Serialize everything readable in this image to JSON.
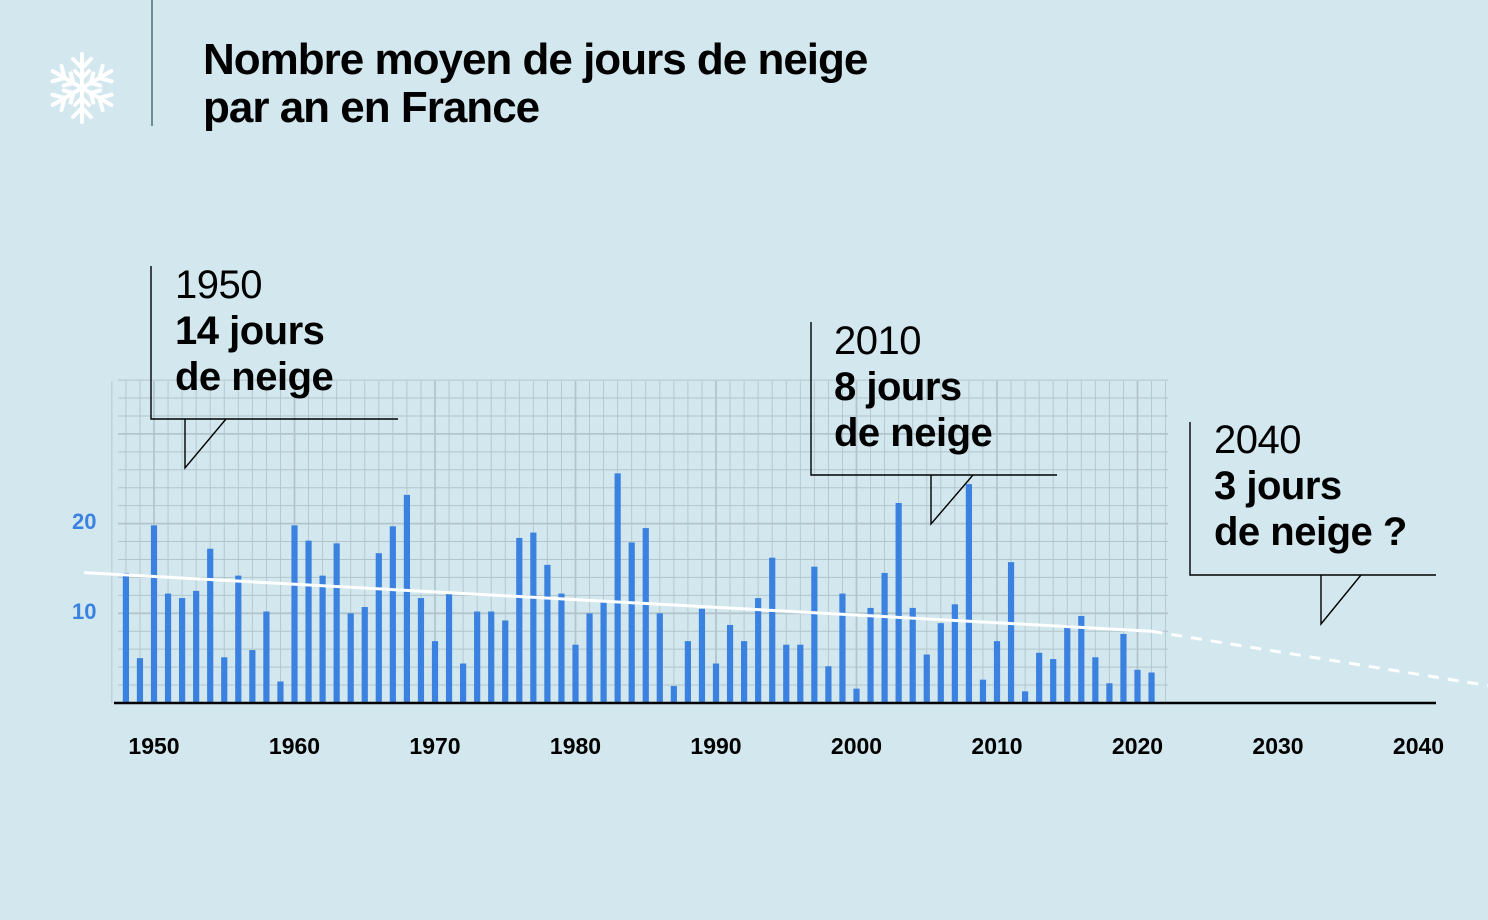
{
  "title": {
    "line1": "Nombre moyen de jours de neige",
    "line2": "par an en France"
  },
  "icon": "snowflake-icon",
  "colors": {
    "background": "#d3e7ee",
    "bar": "#3b82e0",
    "trend": "#ffffff",
    "grid": "#b3c5cc",
    "axis": "#000000",
    "y_tick_labels": "#3b82e0"
  },
  "callouts": [
    {
      "year": "1950",
      "line1": "14 jours",
      "line2": "de neige"
    },
    {
      "year": "2010",
      "line1": "8 jours",
      "line2": "de neige"
    },
    {
      "year": "2040",
      "line1": "3 jours",
      "line2": "de neige ?"
    }
  ],
  "chart_data": {
    "type": "bar",
    "title": "Nombre moyen de jours de neige par an en France",
    "xlabel": "",
    "ylabel": "",
    "xlim": [
      1947,
      2040
    ],
    "ylim": [
      0,
      36
    ],
    "y_ticks": [
      10,
      20
    ],
    "y_tick_labels": [
      "10",
      "20"
    ],
    "x_ticks": [
      1950,
      1960,
      1970,
      1980,
      1990,
      2000,
      2010,
      2020,
      2030,
      2040
    ],
    "x_tick_labels": [
      "1950",
      "1960",
      "1970",
      "1980",
      "1990",
      "2000",
      "2010",
      "2020",
      "2030",
      "2040"
    ],
    "grid": true,
    "x": [
      1948,
      1949,
      1950,
      1951,
      1952,
      1953,
      1954,
      1955,
      1956,
      1957,
      1958,
      1959,
      1960,
      1961,
      1962,
      1963,
      1964,
      1965,
      1966,
      1967,
      1968,
      1969,
      1970,
      1971,
      1972,
      1973,
      1974,
      1975,
      1976,
      1977,
      1978,
      1979,
      1980,
      1981,
      1982,
      1983,
      1984,
      1985,
      1986,
      1987,
      1988,
      1989,
      1990,
      1991,
      1992,
      1993,
      1994,
      1995,
      1996,
      1997,
      1998,
      1999,
      2000,
      2001,
      2002,
      2003,
      2004,
      2005,
      2006,
      2007,
      2008,
      2009,
      2010,
      2011,
      2012,
      2013,
      2014,
      2015,
      2016,
      2017,
      2018,
      2019,
      2020,
      2021
    ],
    "values": [
      14.5,
      5,
      19.8,
      12.2,
      11.7,
      12.5,
      17.2,
      5.1,
      14.2,
      5.9,
      10.2,
      2.4,
      19.8,
      18.1,
      14.2,
      17.8,
      10,
      10.7,
      16.7,
      19.7,
      23.2,
      11.7,
      6.9,
      12.2,
      4.4,
      10.2,
      10.2,
      9.2,
      18.4,
      19,
      15.4,
      12.2,
      6.5,
      10,
      11.2,
      25.6,
      17.9,
      19.5,
      10,
      1.9,
      6.9,
      10.5,
      4.4,
      8.7,
      6.9,
      11.7,
      16.2,
      6.5,
      6.5,
      15.2,
      4.1,
      12.2,
      1.6,
      10.6,
      14.5,
      22.3,
      10.6,
      5.4,
      8.9,
      11,
      24.4,
      2.6,
      6.9,
      15.7,
      1.3,
      5.6,
      4.9,
      8.7,
      9.7,
      5.1,
      2.2,
      7.7,
      3.7,
      3.4
    ],
    "series": [
      {
        "name": "",
        "kind": "bar"
      },
      {
        "name": "",
        "kind": "trend",
        "x": [
          1947,
          2021,
          2040
        ],
        "values": [
          14.5,
          8,
          3
        ],
        "style": "solid until 2021, dashed after"
      }
    ]
  }
}
